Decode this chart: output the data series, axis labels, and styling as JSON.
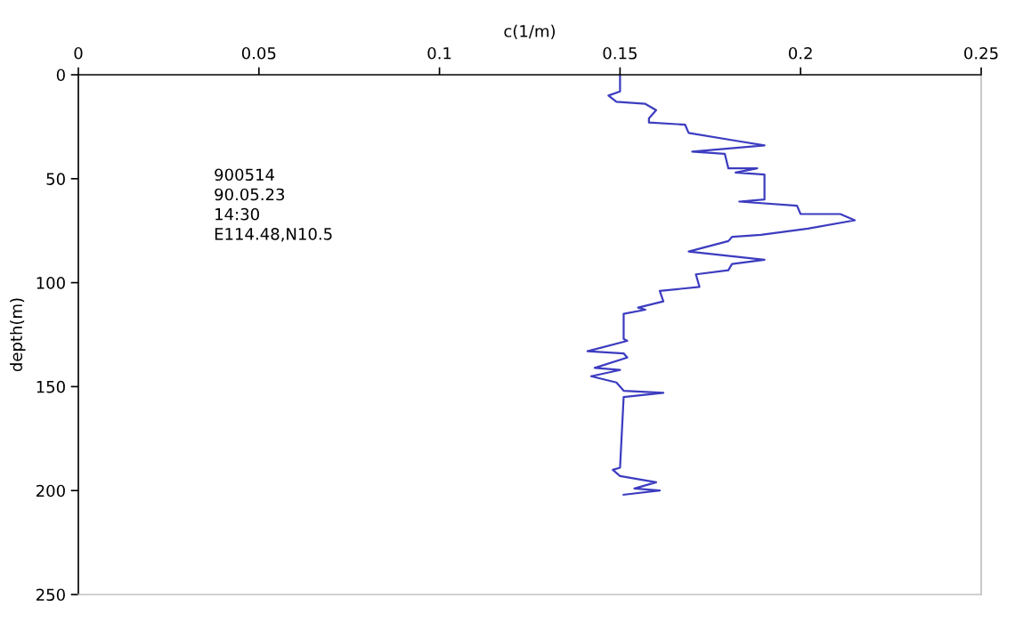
{
  "chart_data": {
    "type": "line",
    "xlabel": "c(1/m)",
    "ylabel": "depth(m)",
    "xlim": [
      0,
      0.25
    ],
    "xticks": [
      0,
      0.05,
      0.1,
      0.15,
      0.2,
      0.25
    ],
    "ylim": [
      250,
      0
    ],
    "yticks": [
      0,
      50,
      100,
      150,
      200,
      250
    ],
    "grid": false,
    "legend": false,
    "marker": "none",
    "line_style": "solid",
    "annotations": [
      "900514",
      "90.05.23",
      "14:30",
      "E114.48,N10.5"
    ],
    "series": [
      {
        "color": "#3c3cc0",
        "x": [
          0.15,
          0.15,
          0.1468,
          0.149,
          0.157,
          0.16,
          0.158,
          0.158,
          0.168,
          0.169,
          0.183,
          0.19,
          0.17,
          0.179,
          0.18,
          0.188,
          0.182,
          0.19,
          0.19,
          0.183,
          0.199,
          0.2,
          0.211,
          0.215,
          0.202,
          0.189,
          0.181,
          0.18,
          0.169,
          0.19,
          0.181,
          0.18,
          0.171,
          0.172,
          0.161,
          0.162,
          0.155,
          0.157,
          0.151,
          0.151,
          0.152,
          0.141,
          0.151,
          0.152,
          0.143,
          0.15,
          0.142,
          0.149,
          0.151,
          0.162,
          0.151,
          0.15,
          0.148,
          0.15,
          0.16,
          0.154,
          0.161,
          0.151
        ],
        "values": [
          0,
          8,
          10,
          13,
          14,
          17,
          21,
          23,
          24,
          28,
          32,
          34,
          37,
          38,
          45,
          45,
          47,
          48,
          60,
          61,
          63,
          67,
          67,
          70,
          74,
          77,
          78,
          80,
          85,
          89,
          91,
          94,
          96,
          102,
          104,
          109,
          112,
          113,
          115,
          127,
          128,
          133,
          134,
          136,
          141,
          142,
          145,
          148,
          152,
          153,
          155,
          189,
          190,
          193,
          196,
          199,
          200,
          202
        ]
      }
    ]
  }
}
